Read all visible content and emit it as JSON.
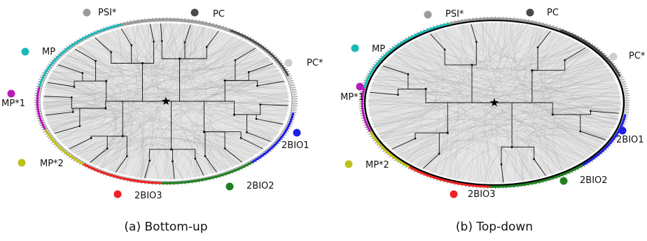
{
  "panels": [
    {
      "caption": "(a) Bottom-up",
      "groups": [
        {
          "label": "PSI*",
          "color": "#9a9a9a"
        },
        {
          "label": "PC",
          "color": "#4a4a4a"
        },
        {
          "label": "PC*",
          "color": "#cfcfcf"
        },
        {
          "label": "2BIO1",
          "color": "#1f1fe8"
        },
        {
          "label": "2BIO2",
          "color": "#1f7f1f"
        },
        {
          "label": "2BIO3",
          "color": "#ee2222"
        },
        {
          "label": "MP*2",
          "color": "#c0c01a"
        },
        {
          "label": "MP*1",
          "color": "#b81ab8"
        },
        {
          "label": "MP",
          "color": "#1ab8b8"
        }
      ]
    },
    {
      "caption": "(b) Top-down",
      "groups": [
        {
          "label": "PSI*",
          "color": "#9a9a9a"
        },
        {
          "label": "PC",
          "color": "#4a4a4a"
        },
        {
          "label": "PC*",
          "color": "#cfcfcf"
        },
        {
          "label": "2BIO1",
          "color": "#1f1fe8"
        },
        {
          "label": "2BIO2",
          "color": "#1f7f1f"
        },
        {
          "label": "2BIO3",
          "color": "#ee2222"
        },
        {
          "label": "MP*2",
          "color": "#c0c01a"
        },
        {
          "label": "MP*1",
          "color": "#b81ab8"
        },
        {
          "label": "MP",
          "color": "#1ab8b8"
        }
      ]
    }
  ],
  "root_marker": "star-icon"
}
